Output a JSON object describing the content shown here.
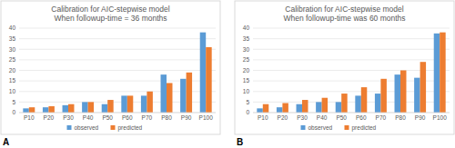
{
  "chart_data": [
    {
      "type": "bar",
      "panel_label": "A",
      "title": "Calibration for AIC-stepwise model",
      "subtitle": "When followup-time = 36 months",
      "categories": [
        "P10",
        "P20",
        "P30",
        "P40",
        "P50",
        "P60",
        "P70",
        "P80",
        "P90",
        "P100"
      ],
      "series": [
        {
          "name": "observed",
          "color": "#5b9bd5",
          "values": [
            2,
            2.5,
            3.5,
            5,
            4,
            8,
            8,
            18,
            16,
            38
          ]
        },
        {
          "name": "predicted",
          "color": "#ed7d31",
          "values": [
            2.5,
            3,
            4,
            5,
            6,
            8,
            10,
            14,
            19,
            31
          ]
        }
      ],
      "ylim": [
        0,
        40
      ],
      "yticks": [
        0,
        5,
        10,
        15,
        20,
        25,
        30,
        35,
        40
      ],
      "grid": true,
      "legend": "bottom"
    },
    {
      "type": "bar",
      "panel_label": "B",
      "title": "Calibration for AIC-stepwise model",
      "subtitle": "When followup-time was 60 months",
      "categories": [
        "P10",
        "P20",
        "P30",
        "P40",
        "P50",
        "P60",
        "P70",
        "P80",
        "P90",
        "P100"
      ],
      "series": [
        {
          "name": "observed",
          "color": "#5b9bd5",
          "values": [
            2,
            2.5,
            4,
            5,
            5,
            8,
            9,
            18,
            16.5,
            37.5
          ]
        },
        {
          "name": "predicted",
          "color": "#ed7d31",
          "values": [
            4,
            4.5,
            6,
            7,
            9,
            12,
            16,
            20,
            24,
            38
          ]
        }
      ],
      "ylim": [
        0,
        40
      ],
      "yticks": [
        0,
        5,
        10,
        15,
        20,
        25,
        30,
        35,
        40
      ],
      "grid": true,
      "legend": "bottom"
    }
  ]
}
